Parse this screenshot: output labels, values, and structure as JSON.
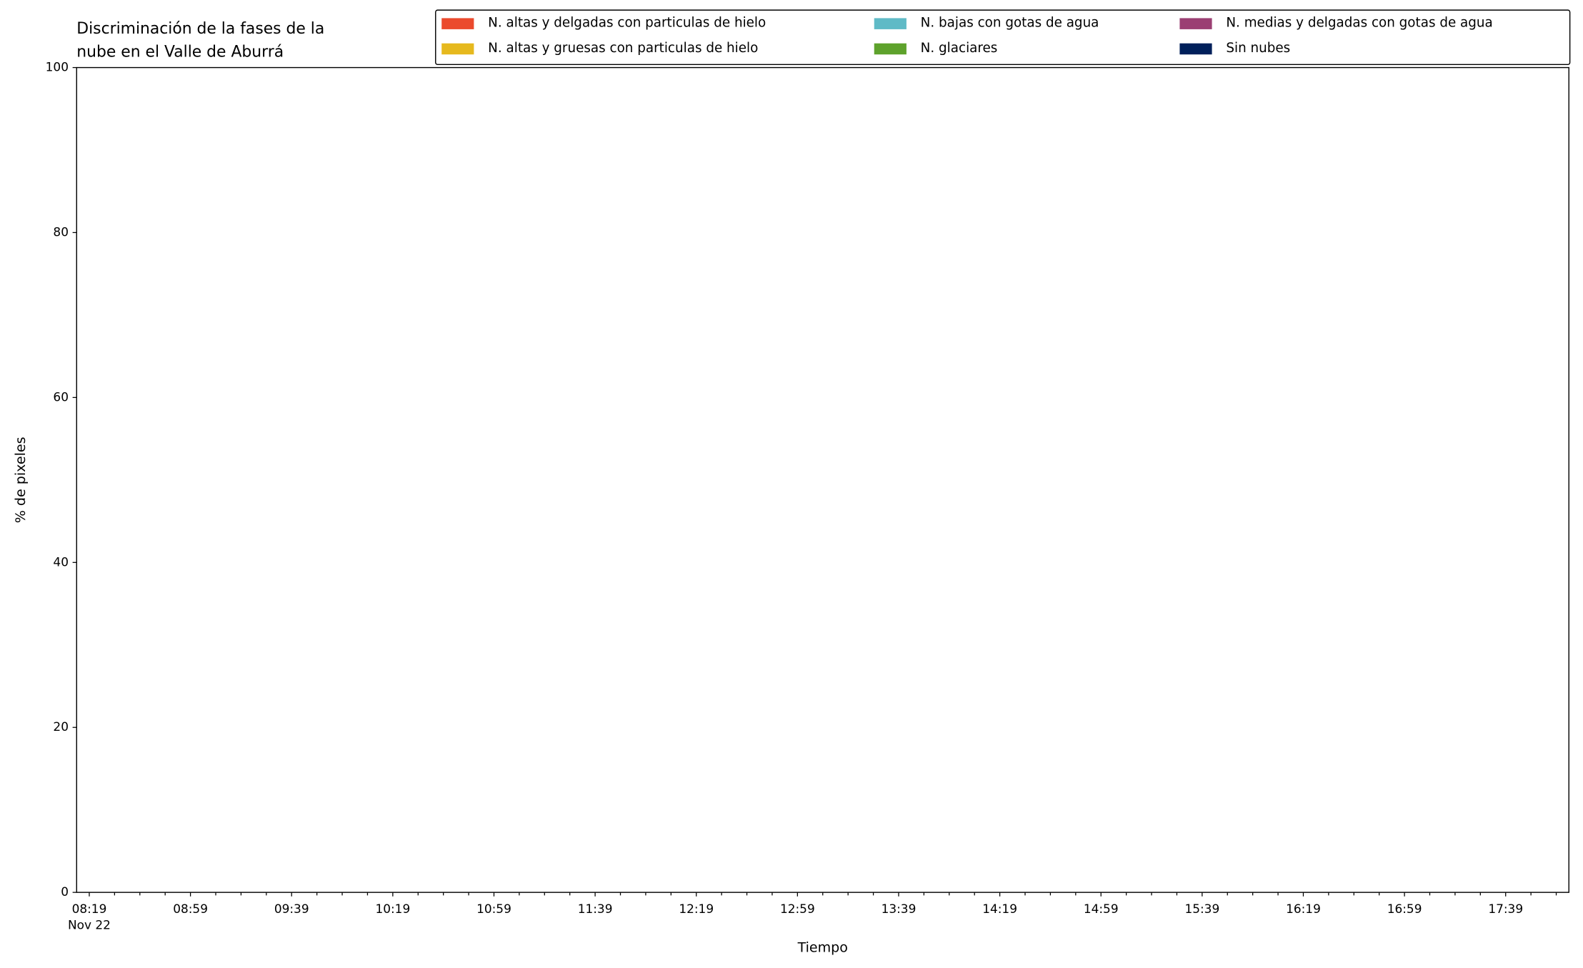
{
  "chart_data": {
    "type": "area",
    "stacked": true,
    "title": [
      "Discriminación de la fases de la",
      "nube en el Valle de Aburrá"
    ],
    "xlabel": "Tiempo",
    "ylabel": "% de pixeles",
    "x": [],
    "series": [
      {
        "name": "N. altas y delgadas con particulas de hielo",
        "color": "#eb4a2d",
        "values": []
      },
      {
        "name": "N. altas y gruesas con particulas de hielo",
        "color": "#e6b91e",
        "values": []
      },
      {
        "name": "N. bajas con gotas de agua",
        "color": "#5fbac6",
        "values": []
      },
      {
        "name": "N. glaciares",
        "color": "#5ea22c",
        "values": []
      },
      {
        "name": "N. medias y delgadas con gotas de agua",
        "color": "#9b3f73",
        "values": []
      },
      {
        "name": "Sin nubes",
        "color": "#00205b",
        "values": []
      }
    ],
    "xlim": [
      "08:14",
      "18:04"
    ],
    "xticks": [
      "08:19",
      "08:59",
      "09:39",
      "10:19",
      "10:59",
      "11:39",
      "12:19",
      "12:59",
      "13:39",
      "14:19",
      "14:59",
      "15:39",
      "16:19",
      "16:59",
      "17:39"
    ],
    "xminorticks": [
      "08:29",
      "08:39",
      "08:49",
      "09:09",
      "09:19",
      "09:29",
      "09:49",
      "09:59",
      "10:09",
      "10:29",
      "10:39",
      "10:49",
      "11:09",
      "11:19",
      "11:29",
      "11:49",
      "11:59",
      "12:09",
      "12:29",
      "12:39",
      "12:49",
      "13:09",
      "13:19",
      "13:29",
      "13:49",
      "13:59",
      "14:09",
      "14:29",
      "14:39",
      "14:49",
      "15:09",
      "15:19",
      "15:29",
      "15:49",
      "15:59",
      "16:09",
      "16:29",
      "16:39",
      "16:49",
      "17:09",
      "17:19",
      "17:29",
      "17:49",
      "17:59"
    ],
    "x_date_label": "Nov 22",
    "ylim": [
      0,
      100
    ],
    "yticks": [
      0,
      20,
      40,
      60,
      80,
      100
    ],
    "legend": "upper right",
    "legend_columns": 3
  }
}
